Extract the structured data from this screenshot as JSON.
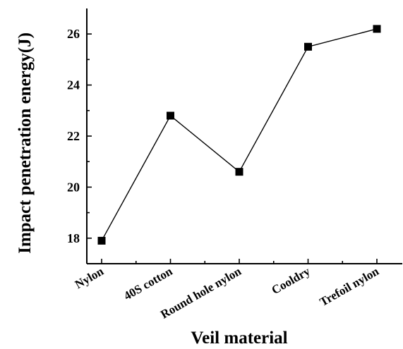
{
  "chart_data": {
    "type": "line",
    "categories": [
      "Nylon",
      "40S cotton",
      "Round hole nylon",
      "Cooldry",
      "Trefoil nylon"
    ],
    "series": [
      {
        "values": [
          17.9,
          22.8,
          20.6,
          25.5,
          26.2
        ]
      }
    ],
    "xlabel": "Veil material",
    "ylabel": "Impact penetration energy(J)",
    "ylim": [
      17,
      27
    ],
    "yticks": [
      18,
      20,
      22,
      24,
      26
    ],
    "marker": "square",
    "line_color": "#000000",
    "grid": false
  }
}
